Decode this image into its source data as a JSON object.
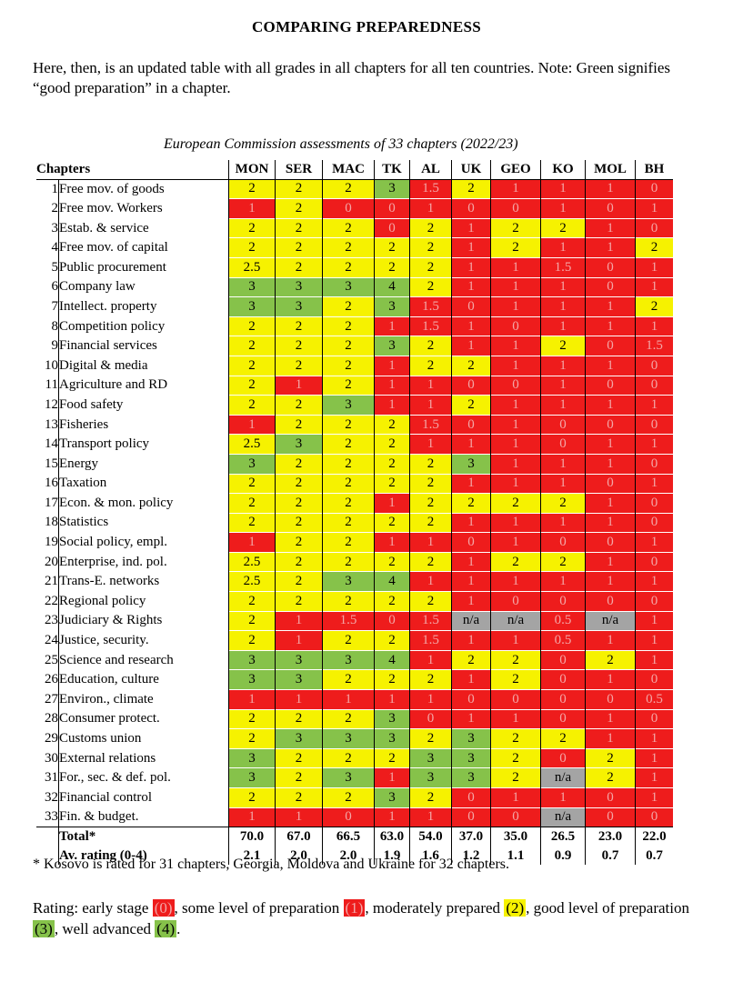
{
  "title": "COMPARING PREPAREDNESS",
  "intro": "Here, then, is an updated table with all grades in all chapters for all ten countries. Note: Green signifies “good preparation” in a chapter.",
  "subtitle": "European Commission assessments of 33 chapters (2022/23)",
  "colors": {
    "red": "#ee1c1c",
    "yellow": "#f6f200",
    "green": "#86c24a",
    "grey": "#a4a4a4"
  },
  "table": {
    "chapters_header": "Chapters",
    "countries": [
      "MON",
      "SER",
      "MAC",
      "TK",
      "AL",
      "UK",
      "GEO",
      "KO",
      "MOL",
      "BH"
    ],
    "rows": [
      {
        "n": "1",
        "name": "Free mov. of goods",
        "g": [
          "2",
          "2",
          "2",
          "3",
          "1.5",
          "2",
          "1",
          "1",
          "1",
          "0"
        ]
      },
      {
        "n": "2",
        "name": "Free mov. Workers",
        "g": [
          "1",
          "2",
          "0",
          "0",
          "1",
          "0",
          "0",
          "1",
          "0",
          "1"
        ]
      },
      {
        "n": "3",
        "name": "Estab. & service",
        "g": [
          "2",
          "2",
          "2",
          "0",
          "2",
          "1",
          "2",
          "2",
          "1",
          "0"
        ]
      },
      {
        "n": "4",
        "name": "Free mov. of capital",
        "g": [
          "2",
          "2",
          "2",
          "2",
          "2",
          "1",
          "2",
          "1",
          "1",
          "2"
        ]
      },
      {
        "n": "5",
        "name": "Public procurement",
        "g": [
          "2.5",
          "2",
          "2",
          "2",
          "2",
          "1",
          "1",
          "1.5",
          "0",
          "1"
        ]
      },
      {
        "n": "6",
        "name": "Company law",
        "g": [
          "3",
          "3",
          "3",
          "4",
          "2",
          "1",
          "1",
          "1",
          "0",
          "1"
        ]
      },
      {
        "n": "7",
        "name": "Intellect. property",
        "g": [
          "3",
          "3",
          "2",
          "3",
          "1.5",
          "0",
          "1",
          "1",
          "1",
          "2"
        ]
      },
      {
        "n": "8",
        "name": "Competition policy",
        "g": [
          "2",
          "2",
          "2",
          "1",
          "1.5",
          "1",
          "0",
          "1",
          "1",
          "1"
        ]
      },
      {
        "n": "9",
        "name": "Financial services",
        "g": [
          "2",
          "2",
          "2",
          "3",
          "2",
          "1",
          "1",
          "2",
          "0",
          "1.5"
        ]
      },
      {
        "n": "10",
        "name": "Digital & media",
        "g": [
          "2",
          "2",
          "2",
          "1",
          "2",
          "2",
          "1",
          "1",
          "1",
          "0"
        ]
      },
      {
        "n": "11",
        "name": "Agriculture and RD",
        "g": [
          "2",
          "1",
          "2",
          "1",
          "1",
          "0",
          "0",
          "1",
          "0",
          "0"
        ]
      },
      {
        "n": "12",
        "name": "Food safety",
        "g": [
          "2",
          "2",
          "3",
          "1",
          "1",
          "2",
          "1",
          "1",
          "1",
          "1"
        ]
      },
      {
        "n": "13",
        "name": "Fisheries",
        "g": [
          "1",
          "2",
          "2",
          "2",
          "1.5",
          "0",
          "1",
          "0",
          "0",
          "0"
        ]
      },
      {
        "n": "14",
        "name": "Transport policy",
        "g": [
          "2.5",
          "3",
          "2",
          "2",
          "1",
          "1",
          "1",
          "0",
          "1",
          "1"
        ]
      },
      {
        "n": "15",
        "name": "Energy",
        "g": [
          "3",
          "2",
          "2",
          "2",
          "2",
          "3",
          "1",
          "1",
          "1",
          "0"
        ]
      },
      {
        "n": "16",
        "name": "Taxation",
        "g": [
          "2",
          "2",
          "2",
          "2",
          "2",
          "1",
          "1",
          "1",
          "0",
          "1"
        ]
      },
      {
        "n": "17",
        "name": "Econ. & mon. policy",
        "g": [
          "2",
          "2",
          "2",
          "1",
          "2",
          "2",
          "2",
          "2",
          "1",
          "0"
        ]
      },
      {
        "n": "18",
        "name": "Statistics",
        "g": [
          "2",
          "2",
          "2",
          "2",
          "2",
          "1",
          "1",
          "1",
          "1",
          "0"
        ]
      },
      {
        "n": "19",
        "name": "Social policy, empl.",
        "g": [
          "1",
          "2",
          "2",
          "1",
          "1",
          "0",
          "1",
          "0",
          "0",
          "1"
        ]
      },
      {
        "n": "20",
        "name": "Enterprise, ind. pol.",
        "g": [
          "2.5",
          "2",
          "2",
          "2",
          "2",
          "1",
          "2",
          "2",
          "1",
          "0"
        ]
      },
      {
        "n": "21",
        "name": "Trans-E. networks",
        "g": [
          "2.5",
          "2",
          "3",
          "4",
          "1",
          "1",
          "1",
          "1",
          "1",
          "1"
        ]
      },
      {
        "n": "22",
        "name": "Regional policy",
        "g": [
          "2",
          "2",
          "2",
          "2",
          "2",
          "1",
          "0",
          "0",
          "0",
          "0"
        ]
      },
      {
        "n": "23",
        "name": "Judiciary & Rights",
        "g": [
          "2",
          "1",
          "1.5",
          "0",
          "1.5",
          "n/a",
          "n/a",
          "0.5",
          "n/a",
          "1"
        ]
      },
      {
        "n": "24",
        "name": "Justice, security.",
        "g": [
          "2",
          "1",
          "2",
          "2",
          "1.5",
          "1",
          "1",
          "0.5",
          "1",
          "1"
        ]
      },
      {
        "n": "25",
        "name": "Science and research",
        "g": [
          "3",
          "3",
          "3",
          "4",
          "1",
          "2",
          "2",
          "0",
          "2",
          "1"
        ]
      },
      {
        "n": "26",
        "name": "Education, culture",
        "g": [
          "3",
          "3",
          "2",
          "2",
          "2",
          "1",
          "2",
          "0",
          "1",
          "0"
        ]
      },
      {
        "n": "27",
        "name": "Environ., climate",
        "g": [
          "1",
          "1",
          "1",
          "1",
          "1",
          "0",
          "0",
          "0",
          "0",
          "0.5"
        ]
      },
      {
        "n": "28",
        "name": "Consumer protect.",
        "g": [
          "2",
          "2",
          "2",
          "3",
          "0",
          "1",
          "1",
          "0",
          "1",
          "0"
        ]
      },
      {
        "n": "29",
        "name": "Customs union",
        "g": [
          "2",
          "3",
          "3",
          "3",
          "2",
          "3",
          "2",
          "2",
          "1",
          "1"
        ]
      },
      {
        "n": "30",
        "name": "External relations",
        "g": [
          "3",
          "2",
          "2",
          "2",
          "3",
          "3",
          "2",
          "0",
          "2",
          "1"
        ]
      },
      {
        "n": "31",
        "name": "For., sec. & def. pol.",
        "g": [
          "3",
          "2",
          "3",
          "1",
          "3",
          "3",
          "2",
          "n/a",
          "2",
          "1"
        ]
      },
      {
        "n": "32",
        "name": "Financial control",
        "g": [
          "2",
          "2",
          "2",
          "3",
          "2",
          "0",
          "1",
          "1",
          "0",
          "1"
        ]
      },
      {
        "n": "33",
        "name": "Fin. & budget.",
        "g": [
          "1",
          "1",
          "0",
          "1",
          "1",
          "0",
          "0",
          "n/a",
          "0",
          "0"
        ]
      }
    ],
    "total_label": "Total*",
    "totals": [
      "70.0",
      "67.0",
      "66.5",
      "63.0",
      "54.0",
      "37.0",
      "35.0",
      "26.5",
      "23.0",
      "22.0"
    ],
    "avg_label": "Av. rating (0-4)",
    "averages": [
      "2.1",
      "2.0",
      "2.0",
      "1.9",
      "1.6",
      "1.2",
      "1.1",
      "0.9",
      "0.7",
      "0.7"
    ]
  },
  "footnote": "* Kosovo is rated for 31 chapters, Georgia, Moldova and Ukraine for 32 chapters.",
  "legend": {
    "prefix": "Rating: early stage ",
    "l0": "(0)",
    "t1": ", some level of preparation ",
    "l1": "(1)",
    "t2": ", moderately prepared ",
    "l2": "(2)",
    "t3": ", good level of preparation ",
    "l3": "(3)",
    "t4": ", well advanced ",
    "l4": "(4)",
    "suffix": "."
  }
}
